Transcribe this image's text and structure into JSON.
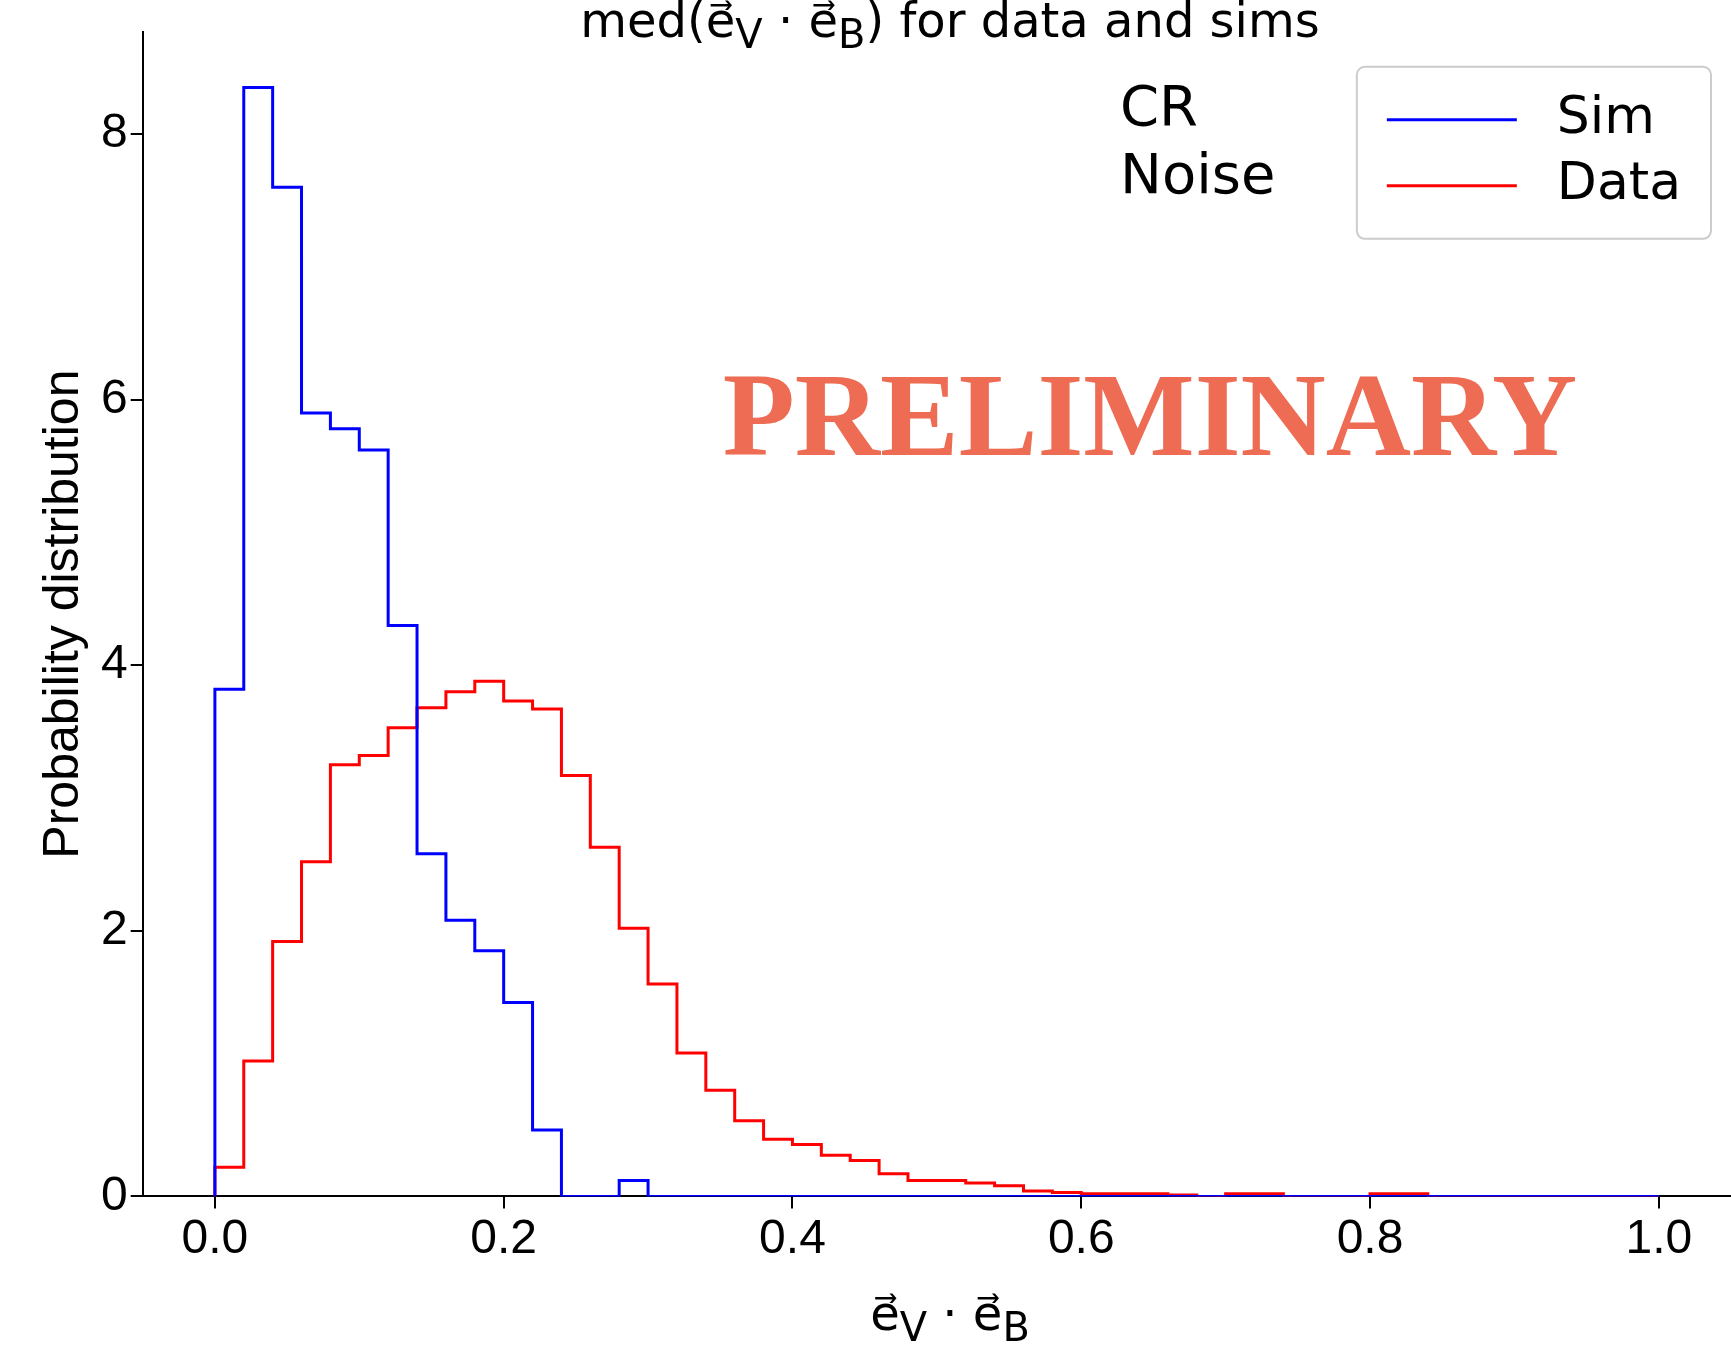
{
  "chart_data": {
    "type": "histogram",
    "title": "med(e⃗$_{V}$ · e⃗$_{B}$) for data and sims",
    "xlabel": "e⃗$_{V}$ · e⃗$_{B}$",
    "ylabel": "Probability distribution",
    "bins": [
      0,
      0.02,
      0.04,
      0.06,
      0.08,
      0.1,
      0.12,
      0.14,
      0.16,
      0.18,
      0.2,
      0.22,
      0.24,
      0.26,
      0.28,
      0.3,
      0.32,
      0.34,
      0.36,
      0.38,
      0.4,
      0.42,
      0.44,
      0.46,
      0.48,
      0.5,
      0.52,
      0.54,
      0.56,
      0.58,
      0.6,
      0.62,
      0.64,
      0.66,
      0.68,
      0.7,
      0.72,
      0.74,
      0.76,
      0.78,
      0.8,
      0.82,
      0.84,
      0.86,
      0.88,
      0.9,
      0.92,
      0.94,
      0.96,
      0.98,
      1.0
    ],
    "series": [
      {
        "name": "Sim",
        "color": "#0000ff",
        "values": [
          3.82,
          8.35,
          7.6,
          5.9,
          5.78,
          5.62,
          4.3,
          2.58,
          2.08,
          1.85,
          1.46,
          0.5,
          0,
          0,
          0.12,
          0,
          0,
          0,
          0,
          0,
          0,
          0,
          0,
          0,
          0,
          0,
          0,
          0,
          0,
          0,
          0,
          0,
          0,
          0,
          0,
          0,
          0,
          0,
          0,
          0,
          0,
          0,
          0,
          0,
          0,
          0,
          0,
          0,
          0,
          0
        ]
      },
      {
        "name": "Data",
        "color": "#ff0000",
        "values": [
          0.22,
          1.02,
          1.92,
          2.52,
          3.25,
          3.32,
          3.53,
          3.68,
          3.8,
          3.88,
          3.73,
          3.67,
          3.17,
          2.63,
          2.02,
          1.6,
          1.08,
          0.8,
          0.57,
          0.43,
          0.39,
          0.31,
          0.27,
          0.17,
          0.12,
          0.12,
          0.1,
          0.08,
          0.04,
          0.03,
          0.02,
          0.02,
          0.02,
          0.01,
          0,
          0.02,
          0.02,
          0,
          0,
          0,
          0.02,
          0.02,
          0,
          0,
          0,
          0,
          0,
          0,
          0,
          0
        ]
      }
    ],
    "xlim": [
      -0.05,
      1.05
    ],
    "xticks": [
      {
        "value": 0,
        "label": "0.0"
      },
      {
        "value": 0.2,
        "label": "0.2"
      },
      {
        "value": 0.4,
        "label": "0.4"
      },
      {
        "value": 0.6,
        "label": "0.6"
      },
      {
        "value": 0.8,
        "label": "0.8"
      },
      {
        "value": 1,
        "label": "1.0"
      }
    ],
    "ylim": [
      0,
      8.77
    ],
    "yticks": [
      0,
      2,
      4,
      6,
      8
    ],
    "legend": "top right",
    "grid": false,
    "annotations": [
      "CR\nNoise",
      "PRELIMINARY"
    ]
  }
}
